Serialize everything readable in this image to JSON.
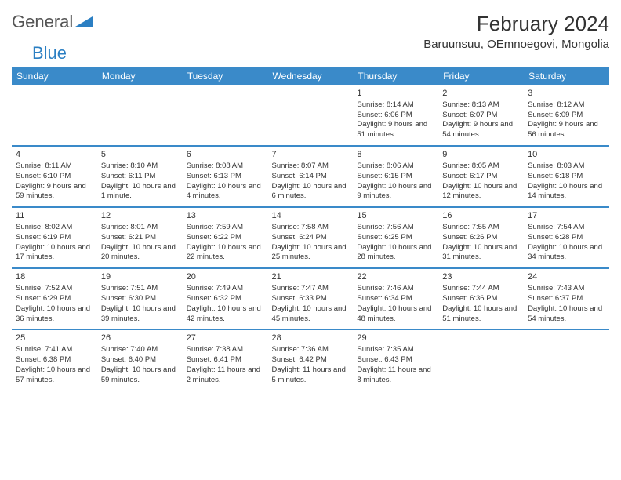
{
  "logo": {
    "text1": "General",
    "text2": "Blue"
  },
  "title": "February 2024",
  "location": "Baruunsuu, OEmnoegovi, Mongolia",
  "colors": {
    "header_bg": "#3a8ac9",
    "accent": "#2b7fc3",
    "text": "#333333"
  },
  "day_headers": [
    "Sunday",
    "Monday",
    "Tuesday",
    "Wednesday",
    "Thursday",
    "Friday",
    "Saturday"
  ],
  "weeks": [
    [
      null,
      null,
      null,
      null,
      {
        "d": "1",
        "sr": "Sunrise: 8:14 AM",
        "ss": "Sunset: 6:06 PM",
        "dl": "Daylight: 9 hours and 51 minutes."
      },
      {
        "d": "2",
        "sr": "Sunrise: 8:13 AM",
        "ss": "Sunset: 6:07 PM",
        "dl": "Daylight: 9 hours and 54 minutes."
      },
      {
        "d": "3",
        "sr": "Sunrise: 8:12 AM",
        "ss": "Sunset: 6:09 PM",
        "dl": "Daylight: 9 hours and 56 minutes."
      }
    ],
    [
      {
        "d": "4",
        "sr": "Sunrise: 8:11 AM",
        "ss": "Sunset: 6:10 PM",
        "dl": "Daylight: 9 hours and 59 minutes."
      },
      {
        "d": "5",
        "sr": "Sunrise: 8:10 AM",
        "ss": "Sunset: 6:11 PM",
        "dl": "Daylight: 10 hours and 1 minute."
      },
      {
        "d": "6",
        "sr": "Sunrise: 8:08 AM",
        "ss": "Sunset: 6:13 PM",
        "dl": "Daylight: 10 hours and 4 minutes."
      },
      {
        "d": "7",
        "sr": "Sunrise: 8:07 AM",
        "ss": "Sunset: 6:14 PM",
        "dl": "Daylight: 10 hours and 6 minutes."
      },
      {
        "d": "8",
        "sr": "Sunrise: 8:06 AM",
        "ss": "Sunset: 6:15 PM",
        "dl": "Daylight: 10 hours and 9 minutes."
      },
      {
        "d": "9",
        "sr": "Sunrise: 8:05 AM",
        "ss": "Sunset: 6:17 PM",
        "dl": "Daylight: 10 hours and 12 minutes."
      },
      {
        "d": "10",
        "sr": "Sunrise: 8:03 AM",
        "ss": "Sunset: 6:18 PM",
        "dl": "Daylight: 10 hours and 14 minutes."
      }
    ],
    [
      {
        "d": "11",
        "sr": "Sunrise: 8:02 AM",
        "ss": "Sunset: 6:19 PM",
        "dl": "Daylight: 10 hours and 17 minutes."
      },
      {
        "d": "12",
        "sr": "Sunrise: 8:01 AM",
        "ss": "Sunset: 6:21 PM",
        "dl": "Daylight: 10 hours and 20 minutes."
      },
      {
        "d": "13",
        "sr": "Sunrise: 7:59 AM",
        "ss": "Sunset: 6:22 PM",
        "dl": "Daylight: 10 hours and 22 minutes."
      },
      {
        "d": "14",
        "sr": "Sunrise: 7:58 AM",
        "ss": "Sunset: 6:24 PM",
        "dl": "Daylight: 10 hours and 25 minutes."
      },
      {
        "d": "15",
        "sr": "Sunrise: 7:56 AM",
        "ss": "Sunset: 6:25 PM",
        "dl": "Daylight: 10 hours and 28 minutes."
      },
      {
        "d": "16",
        "sr": "Sunrise: 7:55 AM",
        "ss": "Sunset: 6:26 PM",
        "dl": "Daylight: 10 hours and 31 minutes."
      },
      {
        "d": "17",
        "sr": "Sunrise: 7:54 AM",
        "ss": "Sunset: 6:28 PM",
        "dl": "Daylight: 10 hours and 34 minutes."
      }
    ],
    [
      {
        "d": "18",
        "sr": "Sunrise: 7:52 AM",
        "ss": "Sunset: 6:29 PM",
        "dl": "Daylight: 10 hours and 36 minutes."
      },
      {
        "d": "19",
        "sr": "Sunrise: 7:51 AM",
        "ss": "Sunset: 6:30 PM",
        "dl": "Daylight: 10 hours and 39 minutes."
      },
      {
        "d": "20",
        "sr": "Sunrise: 7:49 AM",
        "ss": "Sunset: 6:32 PM",
        "dl": "Daylight: 10 hours and 42 minutes."
      },
      {
        "d": "21",
        "sr": "Sunrise: 7:47 AM",
        "ss": "Sunset: 6:33 PM",
        "dl": "Daylight: 10 hours and 45 minutes."
      },
      {
        "d": "22",
        "sr": "Sunrise: 7:46 AM",
        "ss": "Sunset: 6:34 PM",
        "dl": "Daylight: 10 hours and 48 minutes."
      },
      {
        "d": "23",
        "sr": "Sunrise: 7:44 AM",
        "ss": "Sunset: 6:36 PM",
        "dl": "Daylight: 10 hours and 51 minutes."
      },
      {
        "d": "24",
        "sr": "Sunrise: 7:43 AM",
        "ss": "Sunset: 6:37 PM",
        "dl": "Daylight: 10 hours and 54 minutes."
      }
    ],
    [
      {
        "d": "25",
        "sr": "Sunrise: 7:41 AM",
        "ss": "Sunset: 6:38 PM",
        "dl": "Daylight: 10 hours and 57 minutes."
      },
      {
        "d": "26",
        "sr": "Sunrise: 7:40 AM",
        "ss": "Sunset: 6:40 PM",
        "dl": "Daylight: 10 hours and 59 minutes."
      },
      {
        "d": "27",
        "sr": "Sunrise: 7:38 AM",
        "ss": "Sunset: 6:41 PM",
        "dl": "Daylight: 11 hours and 2 minutes."
      },
      {
        "d": "28",
        "sr": "Sunrise: 7:36 AM",
        "ss": "Sunset: 6:42 PM",
        "dl": "Daylight: 11 hours and 5 minutes."
      },
      {
        "d": "29",
        "sr": "Sunrise: 7:35 AM",
        "ss": "Sunset: 6:43 PM",
        "dl": "Daylight: 11 hours and 8 minutes."
      },
      null,
      null
    ]
  ]
}
